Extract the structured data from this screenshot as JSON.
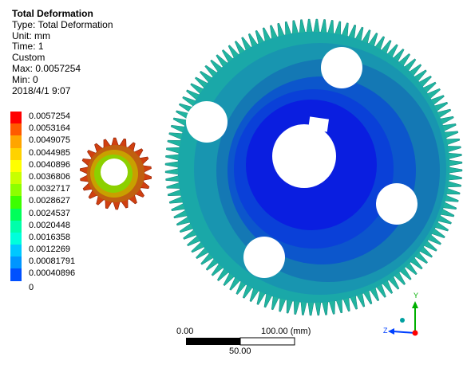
{
  "result": {
    "title": "Total Deformation",
    "type_line": "Type: Total Deformation",
    "unit_line": "Unit: mm",
    "time_line": "Time: 1",
    "custom_line": "Custom",
    "max_line": "Max: 0.0057254",
    "min_line": "Min: 0",
    "date_line": "2018/4/1 9:07"
  },
  "legend": {
    "values": [
      "0.0057254",
      "0.0053164",
      "0.0049075",
      "0.0044985",
      "0.0040896",
      "0.0036806",
      "0.0032717",
      "0.0028627",
      "0.0024537",
      "0.0020448",
      "0.0016358",
      "0.0012269",
      "0.00081791",
      "0.00040896",
      "0"
    ],
    "colors": [
      "#ff0000",
      "#ff5a00",
      "#ffa500",
      "#ffd200",
      "#ffff00",
      "#c8ff00",
      "#8cff00",
      "#3cff00",
      "#00ff5a",
      "#00ffaa",
      "#00ffdc",
      "#00c8ff",
      "#0096ff",
      "#0050ff",
      "#0000ff"
    ]
  },
  "scale": {
    "left_label": "0.00",
    "right_label": "100.00 (mm)",
    "mid_label": "50.00"
  },
  "triad": {
    "y_label": "Y",
    "z_label": "Z"
  },
  "model_colors": {
    "gear_teeth": "#20b4a0",
    "gear_outer": "#1aa8a8",
    "gear_mid": "#1478b4",
    "gear_inner": "#0a40d8",
    "gear_core": "#0a1ee0",
    "pinion_outer": "#d04010",
    "pinion_mid": "#c8a000",
    "pinion_inner": "#8cd000"
  }
}
